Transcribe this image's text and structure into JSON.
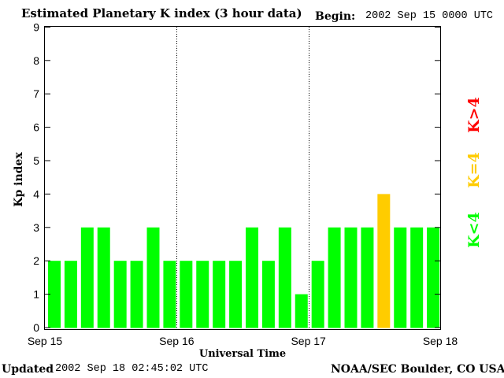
{
  "header": {
    "title": "Estimated Planetary K index (3 hour data)",
    "begin_label": "Begin:",
    "begin_value": "2002 Sep 15 0000 UTC"
  },
  "footer": {
    "updated_label": "Updated",
    "updated_value": "2002 Sep 18 02:45:02 UTC",
    "source": "NOAA/SEC Boulder, CO USA"
  },
  "legend": {
    "low": "K<4",
    "equal": "K=4",
    "high": "K>4"
  },
  "colors": {
    "low": "#00ff00",
    "equal": "#ffcc00",
    "high": "#ff0000",
    "frame": "#000000",
    "background": "#ffffff"
  },
  "chart_data": {
    "type": "bar",
    "title": "Estimated Planetary K index (3 hour data)",
    "xlabel": "Universal Time",
    "ylabel": "Kp index",
    "ylim": [
      0,
      9
    ],
    "yticks": [
      "0",
      "1",
      "2",
      "3",
      "4",
      "5",
      "6",
      "7",
      "8",
      "9"
    ],
    "xticks": [
      "Sep 15",
      "Sep 16",
      "Sep 17",
      "Sep 18"
    ],
    "day_separators": [
      "Sep 16",
      "Sep 17"
    ],
    "interval_hours": 3,
    "grid": false,
    "values": [
      2,
      2,
      3,
      3,
      2,
      2,
      3,
      2,
      2,
      2,
      2,
      2,
      3,
      2,
      3,
      1,
      2,
      3,
      3,
      3,
      4,
      3,
      3,
      3
    ],
    "legend_position": "right"
  }
}
